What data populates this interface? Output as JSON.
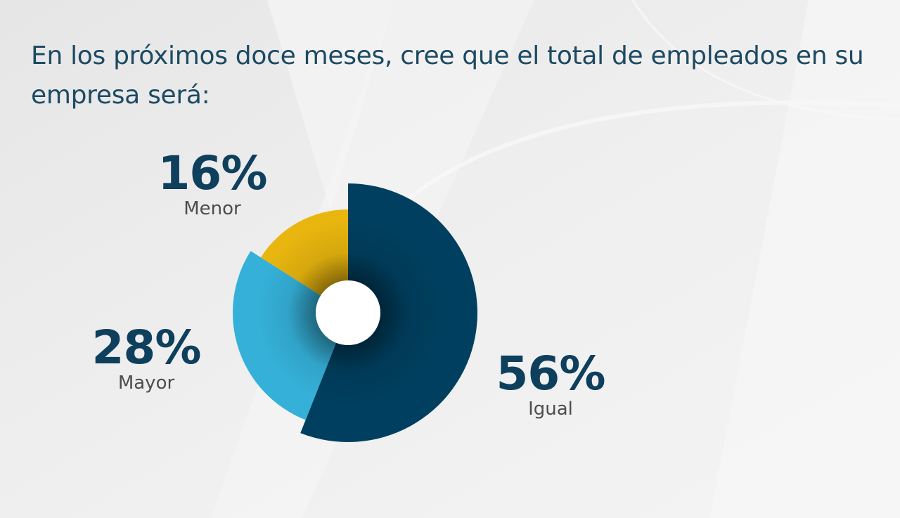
{
  "title": "En los próximos doce meses, cree que el total de empleados en su empresa será:",
  "colors": {
    "igual": "#003f5f",
    "mayor": "#35b1d9",
    "menor": "#e8b60f",
    "text_dark": "#0e3f5c",
    "text_gray": "#4d4d4d"
  },
  "chart_data": {
    "type": "pie",
    "title": "En los próximos doce meses, cree que el total de empleados en su empresa será:",
    "slices": [
      {
        "label": "Igual",
        "value": 56,
        "display": "56%",
        "color": "#003f5f"
      },
      {
        "label": "Mayor",
        "value": 28,
        "display": "28%",
        "color": "#35b1d9"
      },
      {
        "label": "Menor",
        "value": 16,
        "display": "16%",
        "color": "#e8b60f"
      }
    ]
  }
}
